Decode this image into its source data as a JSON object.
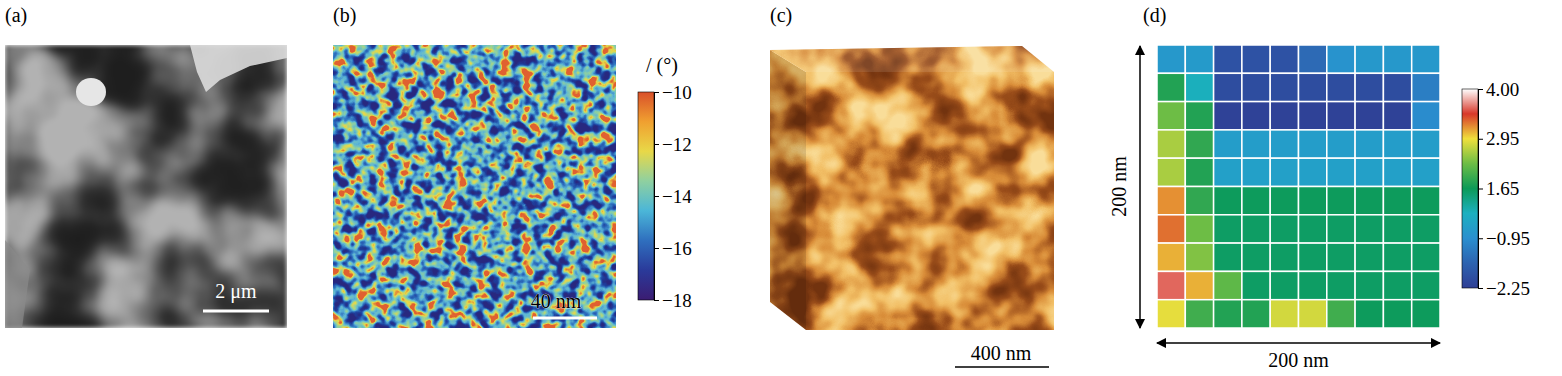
{
  "chart_data": [
    {
      "type": "image",
      "label": "(a)",
      "scale_bar": "2 μm"
    },
    {
      "type": "image",
      "label": "(b)",
      "scale_bar": "40 nm",
      "colorbar": {
        "title": "/ (°)",
        "range": [
          -18,
          -10
        ],
        "ticks": [
          {
            "value": -10,
            "label": "−10"
          },
          {
            "value": -12,
            "label": "−12"
          },
          {
            "value": -14,
            "label": "−14"
          },
          {
            "value": -16,
            "label": "−16"
          },
          {
            "value": -18,
            "label": "−18"
          }
        ]
      }
    },
    {
      "type": "volume",
      "label": "(c)",
      "scale_bar": "400 nm"
    },
    {
      "type": "heatmap",
      "label": "(d)",
      "x_label": "200 nm",
      "y_label": "200 nm",
      "values": [
        [
          -0.6,
          -0.5,
          -1.9,
          -1.9,
          -1.9,
          -1.5,
          -0.8,
          -0.6,
          -0.6,
          -0.6
        ],
        [
          1.8,
          0.4,
          -2.0,
          -2.0,
          -2.0,
          -2.0,
          -2.0,
          -2.0,
          -2.0,
          -1.2
        ],
        [
          2.3,
          1.8,
          -2.2,
          -2.2,
          -2.2,
          -2.2,
          -2.2,
          -2.2,
          -2.2,
          -1.0
        ],
        [
          2.6,
          1.9,
          -0.4,
          -0.4,
          -0.4,
          -0.4,
          -0.4,
          -0.4,
          -0.4,
          -0.4
        ],
        [
          2.6,
          1.8,
          -0.3,
          -0.3,
          -0.3,
          -0.3,
          -0.3,
          -0.3,
          -0.3,
          -0.3
        ],
        [
          3.2,
          1.9,
          1.6,
          1.6,
          1.6,
          1.6,
          1.6,
          1.6,
          1.6,
          1.6
        ],
        [
          3.3,
          2.3,
          1.5,
          1.5,
          1.5,
          1.5,
          1.5,
          1.5,
          1.5,
          1.5
        ],
        [
          3.1,
          2.4,
          1.5,
          1.5,
          1.5,
          1.5,
          1.5,
          1.5,
          1.5,
          1.5
        ],
        [
          3.6,
          3.1,
          2.2,
          1.5,
          1.5,
          1.5,
          1.5,
          1.5,
          1.5,
          1.5
        ],
        [
          2.9,
          2.0,
          1.8,
          1.8,
          2.8,
          2.8,
          2.0,
          1.6,
          1.6,
          1.6
        ]
      ],
      "colorbar": {
        "range": [
          -2.25,
          4.0
        ],
        "ticks": [
          {
            "value": 4,
            "label": "4.00"
          },
          {
            "value": 2.95,
            "label": "2.95"
          },
          {
            "value": 1.65,
            "label": "1.65"
          },
          {
            "value": -0.95,
            "label": "−0.95"
          },
          {
            "value": -2.25,
            "label": "−2.25"
          }
        ]
      }
    }
  ]
}
